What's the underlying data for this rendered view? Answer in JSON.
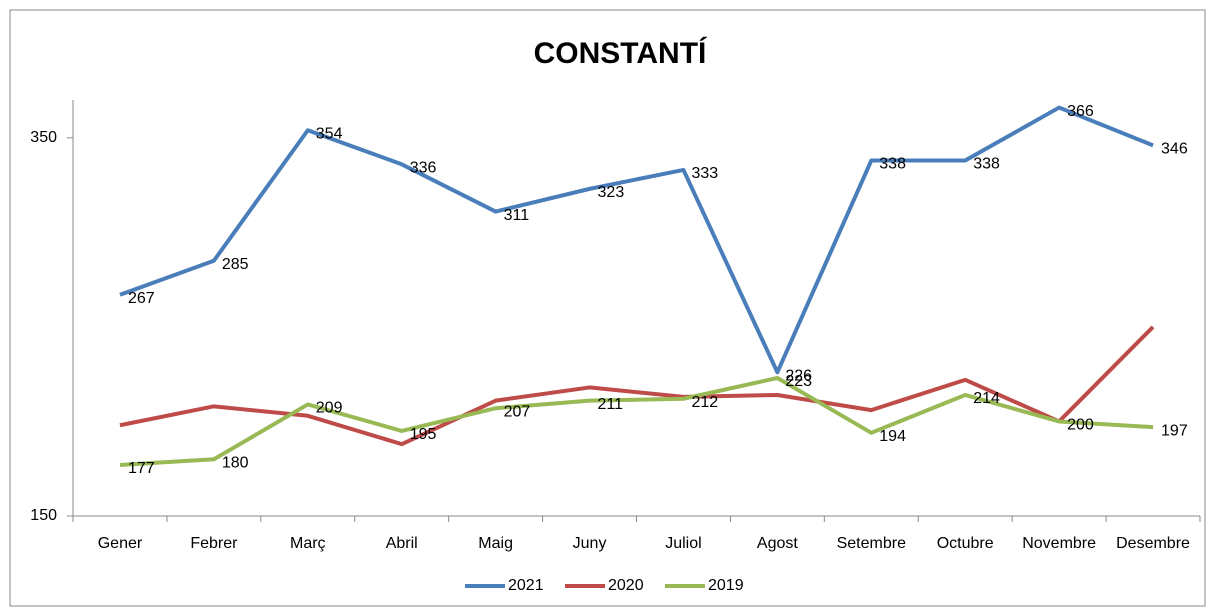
{
  "chart_data": {
    "type": "line",
    "title": "CONSTANTÍ",
    "categories": [
      "Gener",
      "Febrer",
      "Març",
      "Abril",
      "Maig",
      "Juny",
      "Juliol",
      "Agost",
      "Setembre",
      "Octubre",
      "Novembre",
      "Desembre"
    ],
    "series": [
      {
        "name": "2021",
        "color": "#4a7ebb",
        "data_labels": true,
        "values": [
          267,
          285,
          354,
          336,
          311,
          323,
          333,
          226,
          338,
          338,
          366,
          346
        ]
      },
      {
        "name": "2020",
        "color": "#be4b48",
        "data_labels": false,
        "values": [
          198,
          208,
          203,
          188,
          211,
          218,
          213,
          214,
          206,
          222,
          200,
          250
        ]
      },
      {
        "name": "2019",
        "color": "#98b954",
        "data_labels": true,
        "values": [
          177,
          180,
          209,
          195,
          207,
          211,
          212,
          223,
          194,
          214,
          200,
          197
        ]
      }
    ],
    "ylim": [
      150,
      370
    ],
    "yticks": [
      150,
      350
    ],
    "grid": false,
    "legend": "bottom"
  }
}
